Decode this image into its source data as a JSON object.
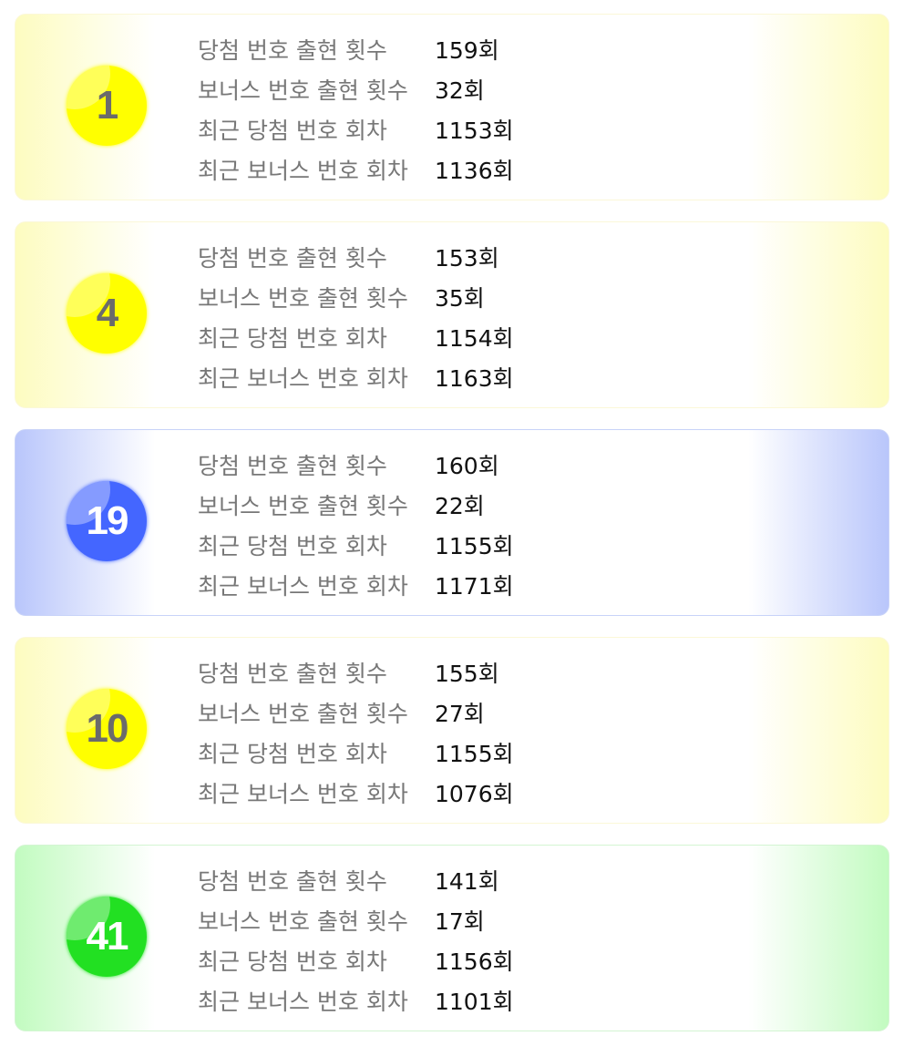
{
  "labels": {
    "win_count": "당첨 번호 출현 횟수",
    "bonus_count": "보너스 번호 출현 횟수",
    "recent_win": "최근 당첨 번호 회차",
    "recent_bonus": "최근 보너스 번호 회차"
  },
  "cards": [
    {
      "number": "1",
      "color": "yellow",
      "win_count": "159회",
      "bonus_count": "32회",
      "recent_win": "1153회",
      "recent_bonus": "1136회"
    },
    {
      "number": "4",
      "color": "yellow",
      "win_count": "153회",
      "bonus_count": "35회",
      "recent_win": "1154회",
      "recent_bonus": "1163회"
    },
    {
      "number": "19",
      "color": "blue",
      "win_count": "160회",
      "bonus_count": "22회",
      "recent_win": "1155회",
      "recent_bonus": "1171회"
    },
    {
      "number": "10",
      "color": "yellow",
      "win_count": "155회",
      "bonus_count": "27회",
      "recent_win": "1155회",
      "recent_bonus": "1076회"
    },
    {
      "number": "41",
      "color": "green",
      "win_count": "141회",
      "bonus_count": "17회",
      "recent_win": "1156회",
      "recent_bonus": "1101회"
    }
  ],
  "palette": {
    "yellow": {
      "ball": "#ffff00",
      "text": "#6b6b6b",
      "tint": "#fdfcc0",
      "border": "#fbf8d8"
    },
    "blue": {
      "ball": "#4466ff",
      "text": "#ffffff",
      "tint": "#b9c6fb",
      "border": "#c8d3f8"
    },
    "green": {
      "ball": "#22e022",
      "text": "#ffffff",
      "tint": "#c2fbc0",
      "border": "#d3f5d2"
    }
  }
}
